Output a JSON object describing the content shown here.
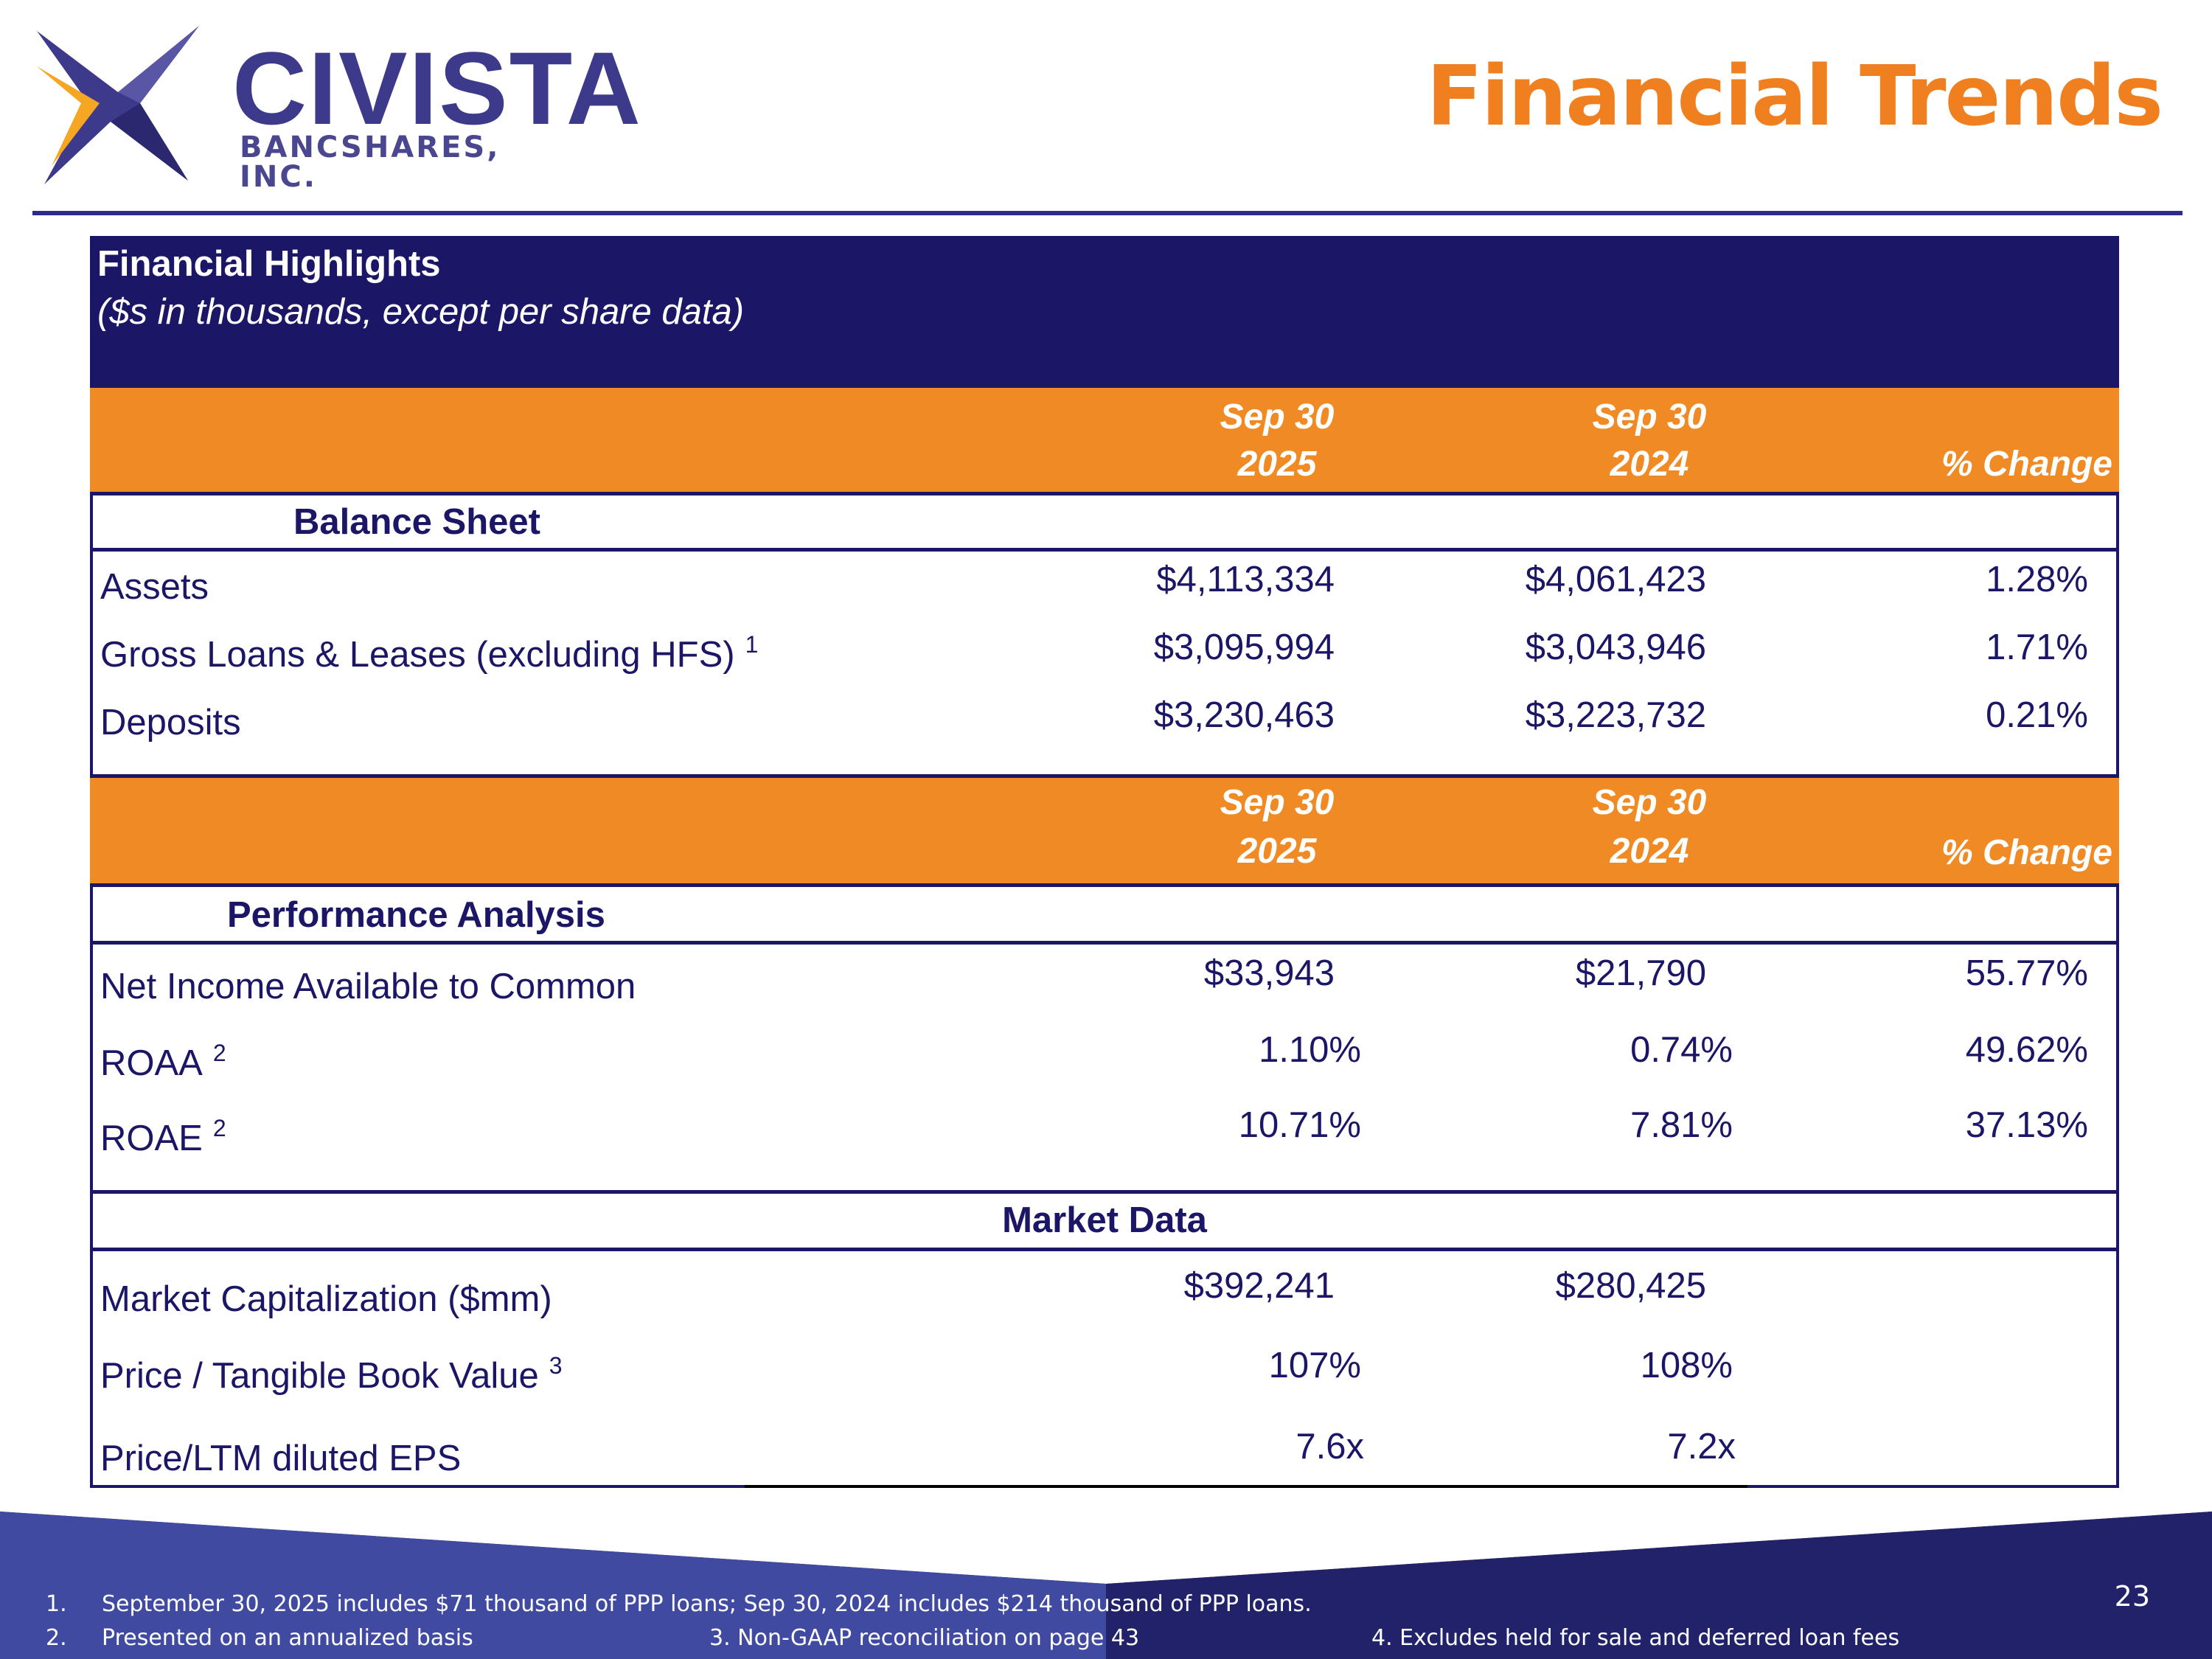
{
  "brand": {
    "name": "CIVISTA",
    "sub": "BANCSHARES, INC.",
    "accent": "#f0801f",
    "navy": "#1b1766"
  },
  "page": {
    "title": "Financial Trends",
    "number": "23"
  },
  "table": {
    "title": "Financial Highlights",
    "subtitle": "($s in thousands, except per share data)",
    "col_heads": {
      "c1_line1": "Sep 30",
      "c1_line2": "2025",
      "c2_line1": "Sep 30",
      "c2_line2": "2024",
      "pct": "% Change"
    },
    "balance_sheet": {
      "label": "Balance Sheet",
      "rows": [
        {
          "label": "Assets",
          "fn": "",
          "c1": "$4,113,334",
          "c2": "$4,061,423",
          "pct": "1.28%"
        },
        {
          "label": "Gross Loans & Leases (excluding HFS)",
          "fn": "1",
          "c1": "$3,095,994",
          "c2": "$3,043,946",
          "pct": "1.71%"
        },
        {
          "label": "Deposits",
          "fn": "",
          "c1": "$3,230,463",
          "c2": "$3,223,732",
          "pct": "0.21%"
        }
      ]
    },
    "performance": {
      "label": "Performance Analysis",
      "rows": [
        {
          "label": "Net Income Available to Common",
          "fn": "",
          "c1": "$33,943",
          "c2": "$21,790",
          "pct": "55.77%"
        },
        {
          "label": "ROAA",
          "fn": "2",
          "c1": "1.10%",
          "c2": "0.74%",
          "pct": "49.62%"
        },
        {
          "label": "ROAE",
          "fn": "2",
          "c1": "10.71%",
          "c2": "7.81%",
          "pct": "37.13%"
        }
      ]
    },
    "market": {
      "label": "Market Data",
      "rows": [
        {
          "label": "Market Capitalization ($mm)",
          "fn": "",
          "c1": "$392,241",
          "c2": "$280,425"
        },
        {
          "label": "Price / Tangible Book Value",
          "fn": "3",
          "c1": "107%",
          "c2": "108%"
        },
        {
          "label": "Price/LTM diluted EPS",
          "fn": "",
          "c1": "7.6x",
          "c2": "7.2x"
        }
      ]
    }
  },
  "footnotes": {
    "n1_num": "1.",
    "n1": "September 30, 2025 includes $71 thousand of PPP loans; Sep 30, 2024 includes $214 thousand of PPP loans.",
    "n2_num": "2.",
    "n2": "Presented on an annualized basis",
    "n3": "3. Non-GAAP reconciliation on page 43",
    "n4": "4. Excludes held for sale and deferred loan fees"
  }
}
